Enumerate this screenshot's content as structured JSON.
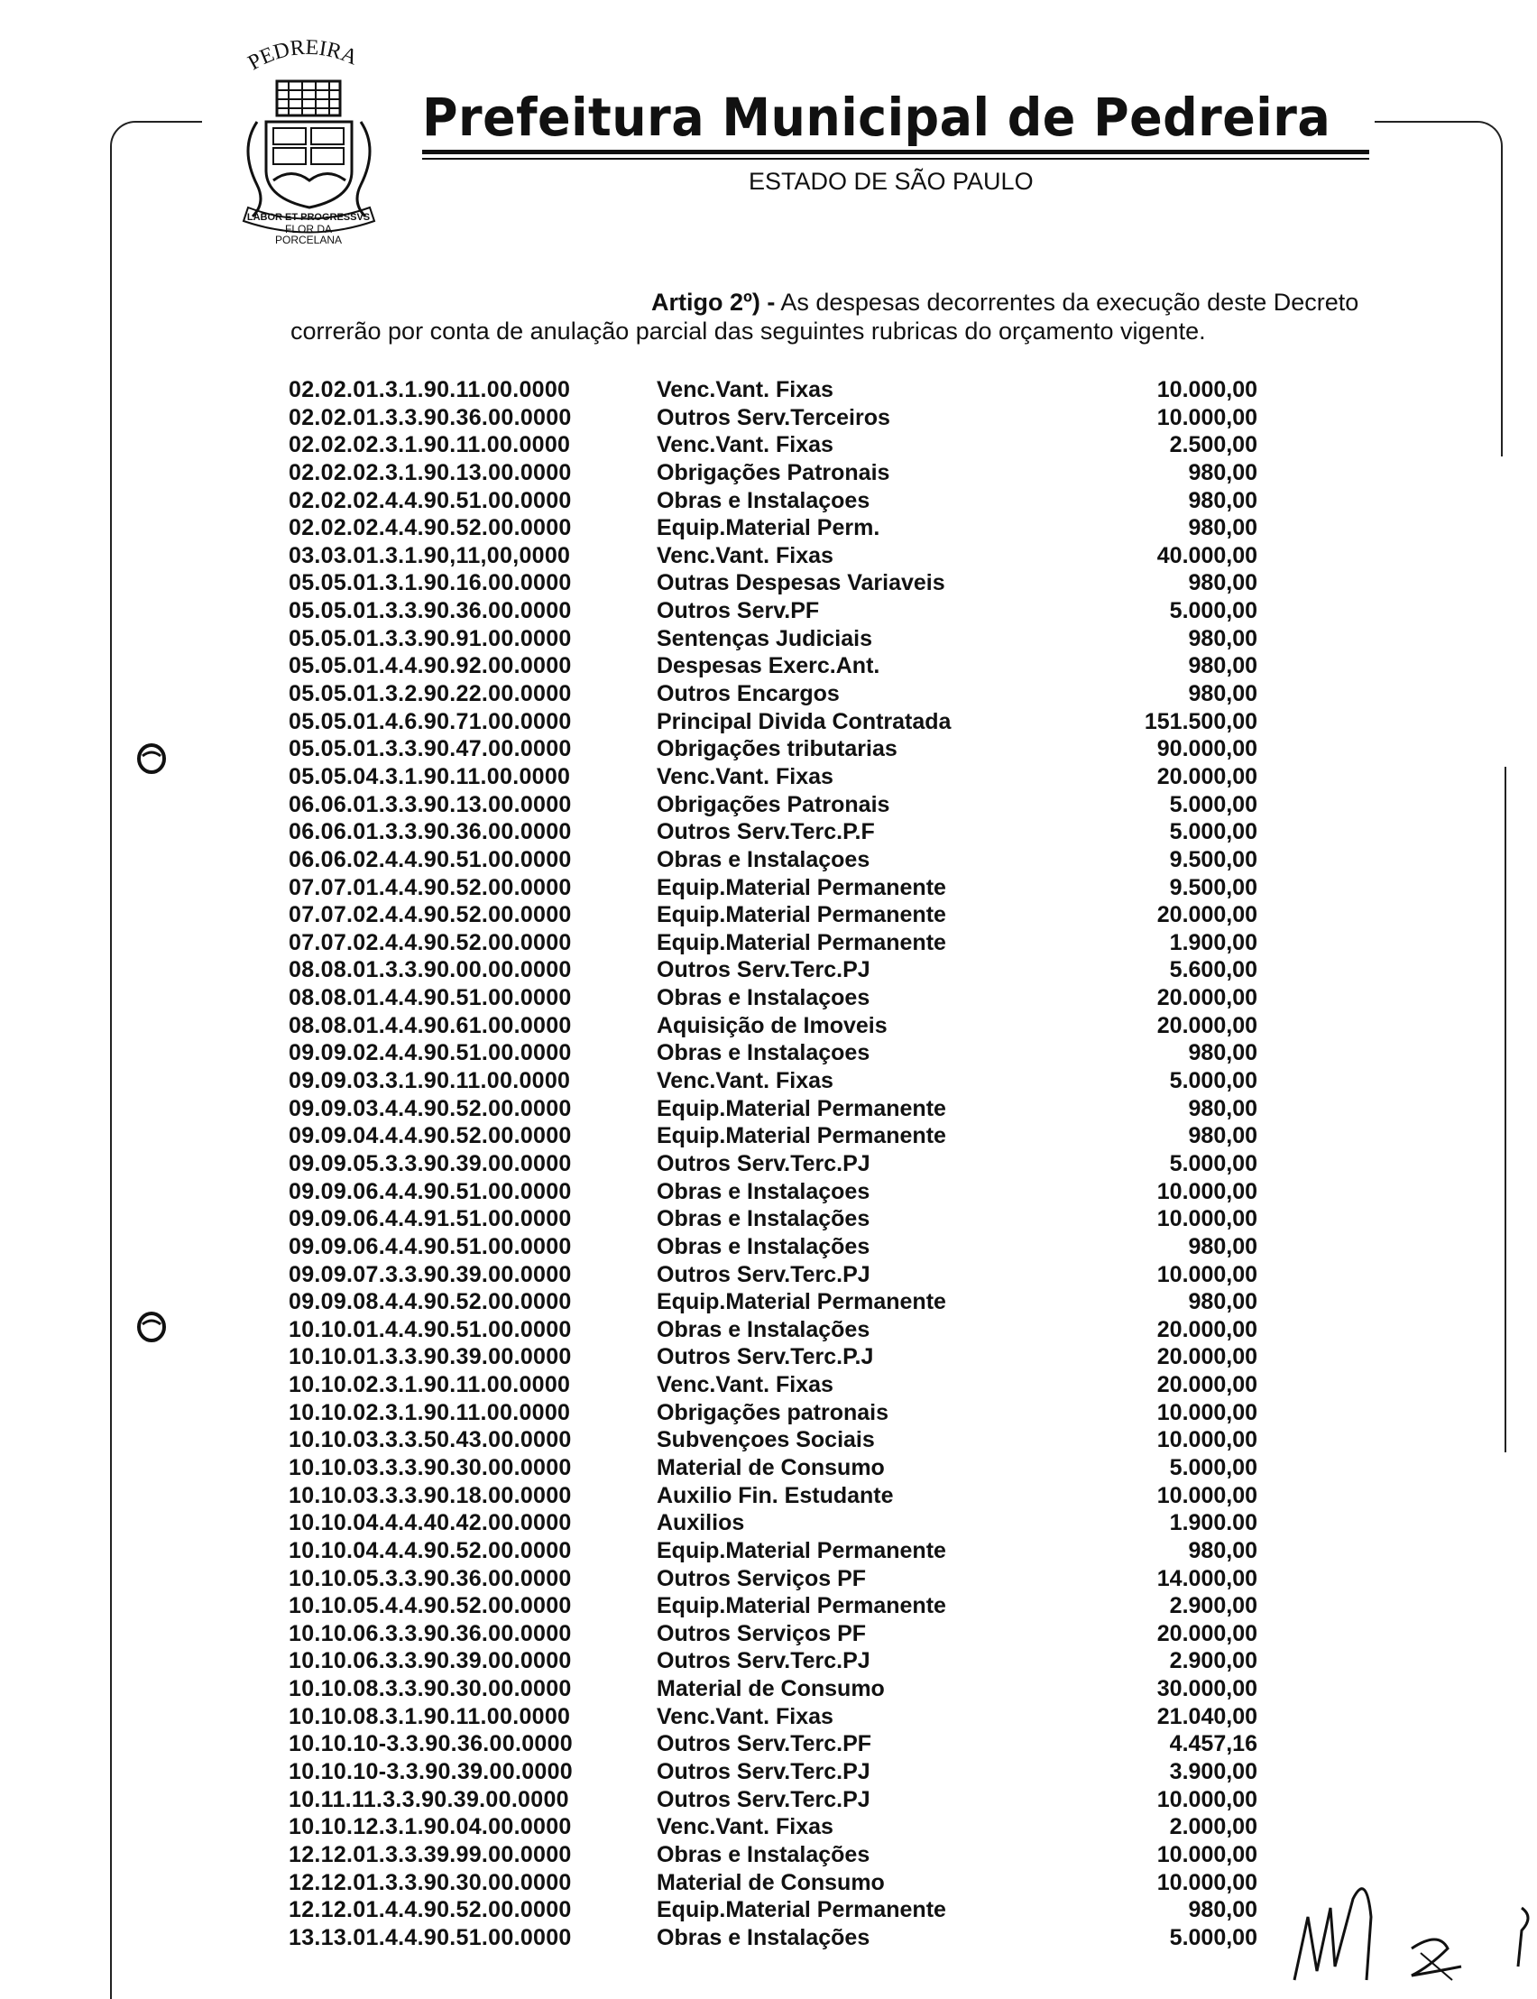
{
  "header": {
    "logo_text": [
      "PEDREIRA",
      "LABOR ET PROGRESSVS",
      "FLOR DA",
      "PORCELANA"
    ],
    "title": "Prefeitura Municipal de Pedreira",
    "subtitle": "ESTADO DE SÃO PAULO"
  },
  "article": {
    "label": "Artigo 2º) -",
    "line1": " As despesas decorrentes da execução deste Decreto",
    "line2": "correrão por conta de anulação parcial das seguintes rubricas do orçamento vigente."
  },
  "rows": [
    {
      "code": "02.02.01.3.1.90.11.00.0000",
      "desc": "Venc.Vant. Fixas",
      "amount": "10.000,00"
    },
    {
      "code": "02.02.01.3.3.90.36.00.0000",
      "desc": "Outros Serv.Terceiros",
      "amount": "10.000,00"
    },
    {
      "code": "02.02.02.3.1.90.11.00.0000",
      "desc": "Venc.Vant. Fixas",
      "amount": "2.500,00"
    },
    {
      "code": "02.02.02.3.1.90.13.00.0000",
      "desc": "Obrigações Patronais",
      "amount": "980,00"
    },
    {
      "code": "02.02.02.4.4.90.51.00.0000",
      "desc": "Obras e Instalaçoes",
      "amount": "980,00"
    },
    {
      "code": "02.02.02.4.4.90.52.00.0000",
      "desc": "Equip.Material Perm.",
      "amount": "980,00"
    },
    {
      "code": "03.03.01.3.1.90,11,00,0000",
      "desc": "Venc.Vant. Fixas",
      "amount": "40.000,00"
    },
    {
      "code": "05.05.01.3.1.90.16.00.0000",
      "desc": "Outras Despesas Variaveis",
      "amount": "980,00"
    },
    {
      "code": "05.05.01.3.3.90.36.00.0000",
      "desc": "Outros Serv.PF",
      "amount": "5.000,00"
    },
    {
      "code": "05.05.01.3.3.90.91.00.0000",
      "desc": "Sentenças Judiciais",
      "amount": "980,00"
    },
    {
      "code": "05.05.01.4.4.90.92.00.0000",
      "desc": "Despesas Exerc.Ant.",
      "amount": "980,00"
    },
    {
      "code": "05.05.01.3.2.90.22.00.0000",
      "desc": "Outros Encargos",
      "amount": "980,00"
    },
    {
      "code": "05.05.01.4.6.90.71.00.0000",
      "desc": "Principal Divida Contratada",
      "amount": "151.500,00"
    },
    {
      "code": "05.05.01.3.3.90.47.00.0000",
      "desc": "Obrigações tributarias",
      "amount": "90.000,00"
    },
    {
      "code": "05.05.04.3.1.90.11.00.0000",
      "desc": "Venc.Vant. Fixas",
      "amount": "20.000,00"
    },
    {
      "code": "06.06.01.3.3.90.13.00.0000",
      "desc": "Obrigações Patronais",
      "amount": "5.000,00"
    },
    {
      "code": "06.06.01.3.3.90.36.00.0000",
      "desc": "Outros Serv.Terc.P.F",
      "amount": "5.000,00"
    },
    {
      "code": "06.06.02.4.4.90.51.00.0000",
      "desc": "Obras e Instalaçoes",
      "amount": "9.500,00"
    },
    {
      "code": "07.07.01.4.4.90.52.00.0000",
      "desc": "Equip.Material Permanente",
      "amount": "9.500,00"
    },
    {
      "code": "07.07.02.4.4.90.52.00.0000",
      "desc": "Equip.Material Permanente",
      "amount": "20.000,00"
    },
    {
      "code": "07.07.02.4.4.90.52.00.0000",
      "desc": "Equip.Material Permanente",
      "amount": "1.900,00"
    },
    {
      "code": "08.08.01.3.3.90.00.00.0000",
      "desc": "Outros Serv.Terc.PJ",
      "amount": "5.600,00"
    },
    {
      "code": "08.08.01.4.4.90.51.00.0000",
      "desc": "Obras e Instalaçoes",
      "amount": "20.000,00"
    },
    {
      "code": "08.08.01.4.4.90.61.00.0000",
      "desc": "Aquisição de Imoveis",
      "amount": "20.000,00"
    },
    {
      "code": "09.09.02.4.4.90.51.00.0000",
      "desc": "Obras e Instalaçoes",
      "amount": "980,00"
    },
    {
      "code": "09.09.03.3.1.90.11.00.0000",
      "desc": "Venc.Vant. Fixas",
      "amount": "5.000,00"
    },
    {
      "code": "09.09.03.4.4.90.52.00.0000",
      "desc": "Equip.Material Permanente",
      "amount": "980,00"
    },
    {
      "code": "09.09.04.4.4.90.52.00.0000",
      "desc": "Equip.Material Permanente",
      "amount": "980,00"
    },
    {
      "code": "09.09.05.3.3.90.39.00.0000",
      "desc": "Outros Serv.Terc.PJ",
      "amount": "5.000,00"
    },
    {
      "code": "09.09.06.4.4.90.51.00.0000",
      "desc": "Obras e Instalaçoes",
      "amount": "10.000,00"
    },
    {
      "code": "09.09.06.4.4.91.51.00.0000",
      "desc": "Obras e Instalações",
      "amount": "10.000,00"
    },
    {
      "code": "09.09.06.4.4.90.51.00.0000",
      "desc": "Obras e Instalações",
      "amount": "980,00"
    },
    {
      "code": "09.09.07.3.3.90.39.00.0000",
      "desc": "Outros Serv.Terc.PJ",
      "amount": "10.000,00"
    },
    {
      "code": "09.09.08.4.4.90.52.00.0000",
      "desc": "Equip.Material Permanente",
      "amount": "980,00"
    },
    {
      "code": "10.10.01.4.4.90.51.00.0000",
      "desc": "Obras e Instalações",
      "amount": "20.000,00"
    },
    {
      "code": "10.10.01.3.3.90.39.00.0000",
      "desc": "Outros Serv.Terc.P.J",
      "amount": "20.000,00"
    },
    {
      "code": "10.10.02.3.1.90.11.00.0000",
      "desc": "Venc.Vant. Fixas",
      "amount": "20.000,00"
    },
    {
      "code": "10.10.02.3.1.90.11.00.0000",
      "desc": "Obrigações patronais",
      "amount": "10.000,00"
    },
    {
      "code": "10.10.03.3.3.50.43.00.0000",
      "desc": "Subvençoes Sociais",
      "amount": "10.000,00"
    },
    {
      "code": "10.10.03.3.3.90.30.00.0000",
      "desc": "Material de Consumo",
      "amount": "5.000,00"
    },
    {
      "code": "10.10.03.3.3.90.18.00.0000",
      "desc": "Auxilio Fin. Estudante",
      "amount": "10.000,00"
    },
    {
      "code": "10.10.04.4.4.40.42.00.0000",
      "desc": "Auxilios",
      "amount": "1.900.00"
    },
    {
      "code": "10.10.04.4.4.90.52.00.0000",
      "desc": "Equip.Material Permanente",
      "amount": "980,00"
    },
    {
      "code": "10.10.05.3.3.90.36.00.0000",
      "desc": "Outros Serviços PF",
      "amount": "14.000,00"
    },
    {
      "code": "10.10.05.4.4.90.52.00.0000",
      "desc": "Equip.Material Permanente",
      "amount": "2.900,00"
    },
    {
      "code": "10.10.06.3.3.90.36.00.0000",
      "desc": "Outros Serviços PF",
      "amount": "20.000,00"
    },
    {
      "code": "10.10.06.3.3.90.39.00.0000",
      "desc": "Outros Serv.Terc.PJ",
      "amount": "2.900,00"
    },
    {
      "code": "10.10.08.3.3.90.30.00.0000",
      "desc": "Material de Consumo",
      "amount": "30.000,00"
    },
    {
      "code": "10.10.08.3.1.90.11.00.0000",
      "desc": "Venc.Vant. Fixas",
      "amount": "21.040,00"
    },
    {
      "code": "10.10.10-3.3.90.36.00.0000",
      "desc": "Outros Serv.Terc.PF",
      "amount": "4.457,16"
    },
    {
      "code": "10.10.10-3.3.90.39.00.0000",
      "desc": "Outros Serv.Terc.PJ",
      "amount": "3.900,00"
    },
    {
      "code": "10.11.11.3.3.90.39.00.0000",
      "desc": "Outros Serv.Terc.PJ",
      "amount": "10.000,00"
    },
    {
      "code": "10.10.12.3.1.90.04.00.0000",
      "desc": "Venc.Vant. Fixas",
      "amount": "2.000,00"
    },
    {
      "code": "12.12.01.3.3.39.99.00.0000",
      "desc": "Obras e Instalações",
      "amount": "10.000,00"
    },
    {
      "code": "12.12.01.3.3.90.30.00.0000",
      "desc": "Material de Consumo",
      "amount": "10.000,00"
    },
    {
      "code": "12.12.01.4.4.90.52.00.0000",
      "desc": "Equip.Material Permanente",
      "amount": "980,00"
    },
    {
      "code": "13.13.01.4.4.90.51.00.0000",
      "desc": "Obras e Instalações",
      "amount": "5.000,00"
    }
  ]
}
